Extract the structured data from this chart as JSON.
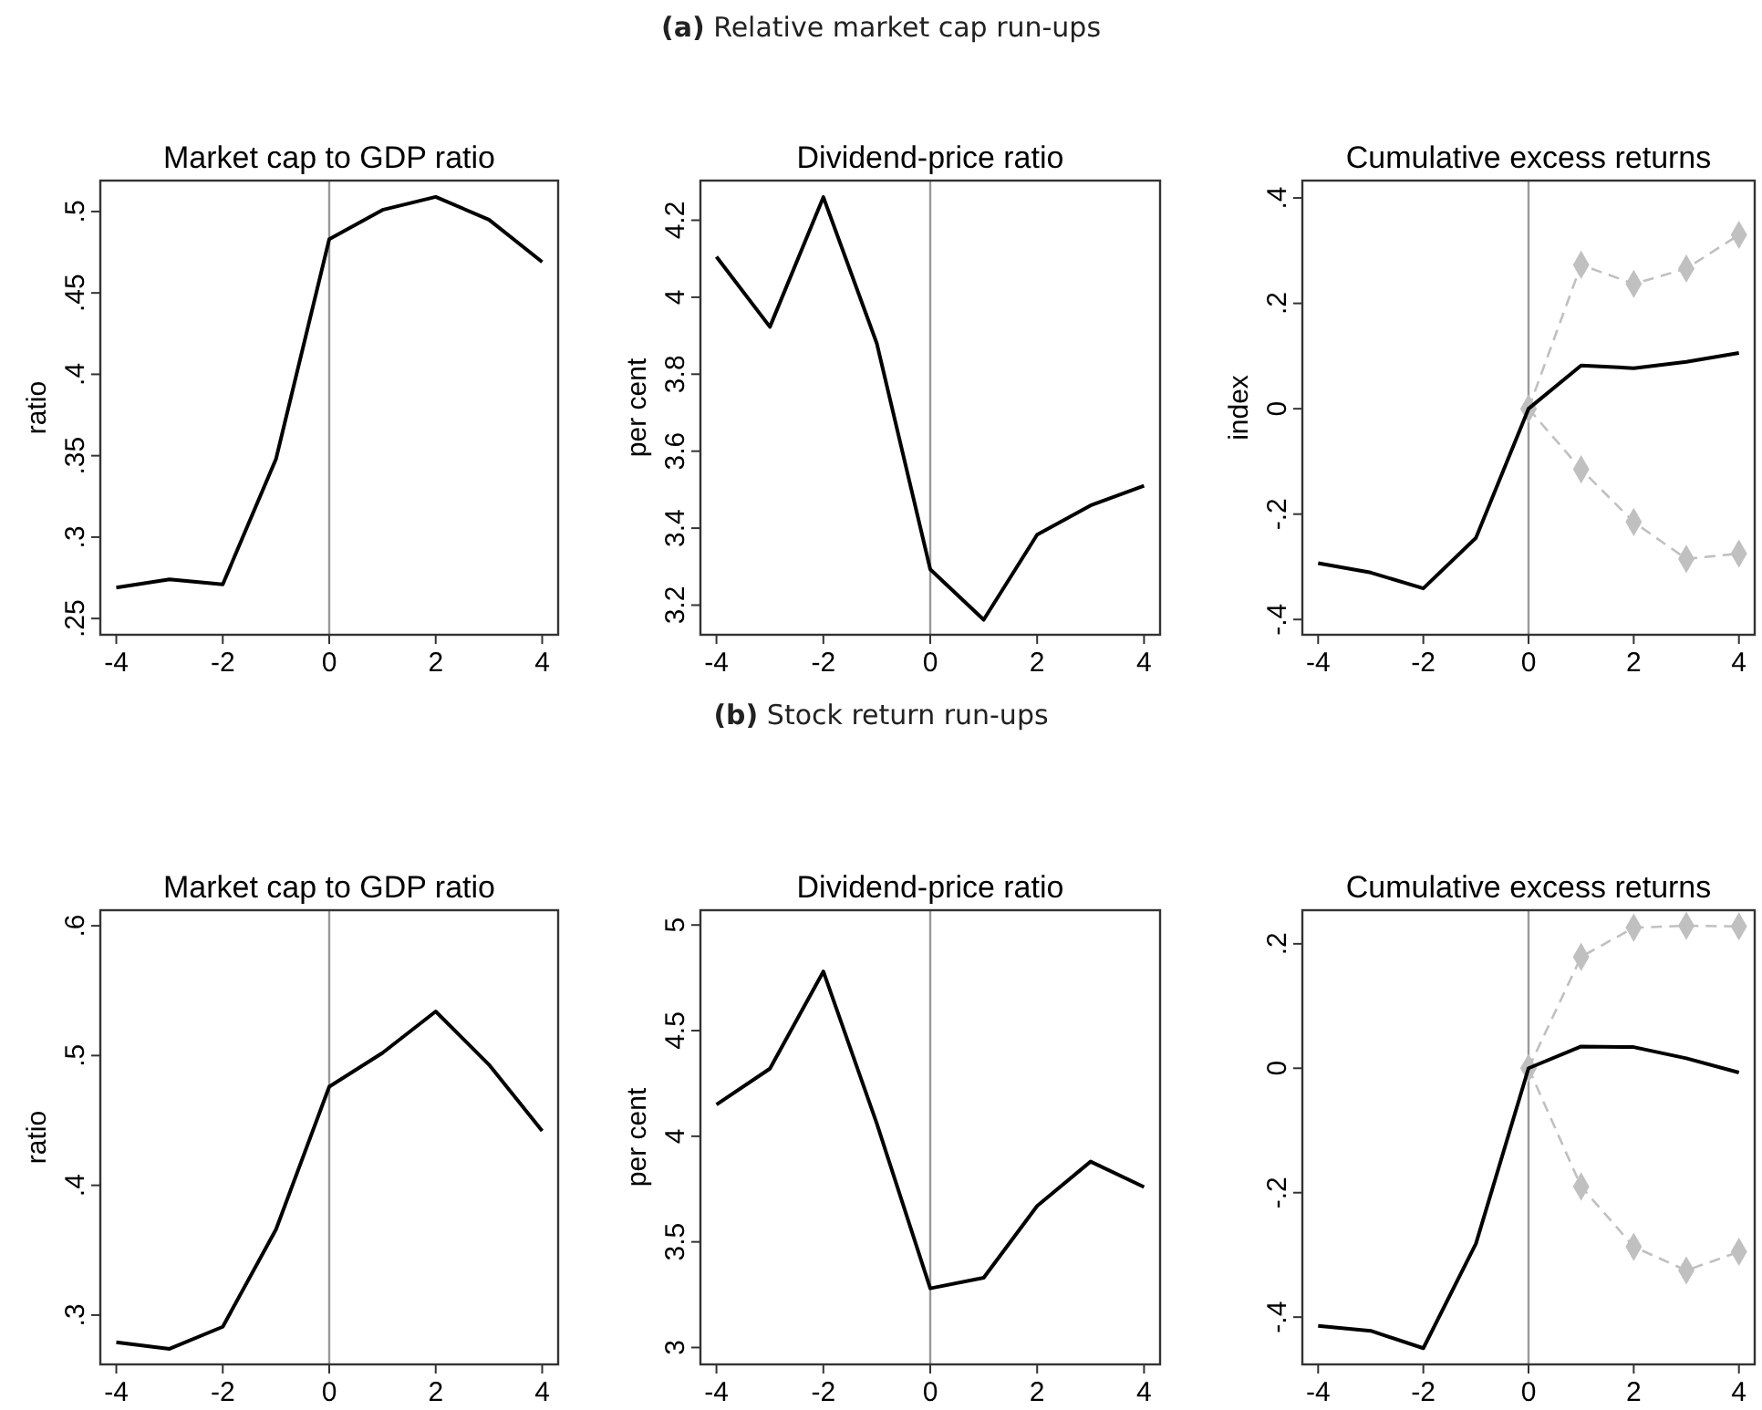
{
  "chart_data": [
    {
      "type": "line",
      "title": "Market cap to GDP ratio",
      "ylabel": "ratio",
      "annotations": [
        "(a) Relative market cap run-ups"
      ],
      "x": [
        -4,
        -3,
        -2,
        -1,
        0,
        1,
        2,
        3,
        4
      ],
      "xlim": [
        -4.3,
        4.3
      ],
      "xticks": [
        -4,
        -2,
        0,
        2,
        4
      ],
      "ylim": [
        0.24,
        0.519
      ],
      "yticks": [
        {
          "value": 0.25,
          "label": ".25"
        },
        {
          "value": 0.3,
          "label": ".3"
        },
        {
          "value": 0.35,
          "label": ".35"
        },
        {
          "value": 0.4,
          "label": ".4"
        },
        {
          "value": 0.45,
          "label": ".45"
        },
        {
          "value": 0.5,
          "label": ".5"
        }
      ],
      "ref_lines": [
        {
          "axis": "x",
          "value": 0,
          "color": "#999999"
        }
      ],
      "series": [
        {
          "color": "#000000",
          "values": [
            0.269,
            0.274,
            0.271,
            0.348,
            0.483,
            0.501,
            0.509,
            0.495,
            0.469
          ]
        }
      ]
    },
    {
      "type": "line",
      "title": "Dividend-price ratio",
      "ylabel": "per cent",
      "x": [
        -4,
        -3,
        -2,
        -1,
        0,
        1,
        2,
        3,
        4
      ],
      "xlim": [
        -4.3,
        4.3
      ],
      "xticks": [
        -4,
        -2,
        0,
        2,
        4
      ],
      "ylim": [
        3.123,
        4.303
      ],
      "yticks": [
        3.2,
        3.4,
        3.6,
        3.8,
        4,
        4.2
      ],
      "ref_lines": [
        {
          "axis": "x",
          "value": 0,
          "color": "#999999"
        }
      ],
      "series": [
        {
          "color": "#000000",
          "values": [
            4.105,
            3.923,
            4.26,
            3.88,
            3.293,
            3.162,
            3.383,
            3.459,
            3.51
          ]
        }
      ]
    },
    {
      "type": "line",
      "title": "Cumulative excess returns",
      "ylabel": "index",
      "x": [
        -4,
        -3,
        -2,
        -1,
        0,
        1,
        2,
        3,
        4
      ],
      "xlim": [
        -4.3,
        4.3
      ],
      "xticks": [
        -4,
        -2,
        0,
        2,
        4
      ],
      "ylim": [
        -0.429,
        0.433
      ],
      "yticks": [
        {
          "value": -0.4,
          "label": "-.4"
        },
        {
          "value": -0.2,
          "label": "-.2"
        },
        0,
        {
          "value": 0.2,
          "label": ".2"
        },
        {
          "value": 0.4,
          "label": ".4"
        }
      ],
      "ref_lines": [
        {
          "axis": "x",
          "value": 0,
          "color": "#999999"
        }
      ],
      "series": [
        {
          "color": "#c0c0c0",
          "marker": "diamond",
          "line_style": "dashed",
          "x": [
            0,
            1,
            2,
            3,
            4
          ],
          "values": [
            0,
            0.273,
            0.237,
            0.266,
            0.33
          ]
        },
        {
          "color": "#c0c0c0",
          "marker": "diamond",
          "line_style": "dashed",
          "x": [
            0,
            1,
            2,
            3,
            4
          ],
          "values": [
            0,
            -0.115,
            -0.215,
            -0.285,
            -0.275
          ]
        },
        {
          "color": "#000000",
          "values": [
            -0.293,
            -0.311,
            -0.341,
            -0.245,
            0,
            0.082,
            0.077,
            0.089,
            0.106
          ]
        }
      ]
    },
    {
      "type": "line",
      "title": "Market cap to GDP ratio",
      "ylabel": "ratio",
      "annotations": [
        "(b) Stock return run-ups"
      ],
      "x": [
        -4,
        -3,
        -2,
        -1,
        0,
        1,
        2,
        3,
        4
      ],
      "xlim": [
        -4.3,
        4.3
      ],
      "xticks": [
        -4,
        -2,
        0,
        2,
        4
      ],
      "ylim": [
        0.262,
        0.612
      ],
      "yticks": [
        {
          "value": 0.3,
          "label": ".3"
        },
        {
          "value": 0.4,
          "label": ".4"
        },
        {
          "value": 0.5,
          "label": ".5"
        },
        {
          "value": 0.6,
          "label": ".6"
        }
      ],
      "ref_lines": [
        {
          "axis": "x",
          "value": 0,
          "color": "#999999"
        }
      ],
      "series": [
        {
          "color": "#000000",
          "values": [
            0.279,
            0.274,
            0.291,
            0.366,
            0.476,
            0.502,
            0.534,
            0.493,
            0.442
          ]
        }
      ]
    },
    {
      "type": "line",
      "title": "Dividend-price ratio",
      "ylabel": "per cent",
      "x": [
        -4,
        -3,
        -2,
        -1,
        0,
        1,
        2,
        3,
        4
      ],
      "xlim": [
        -4.3,
        4.3
      ],
      "xticks": [
        -4,
        -2,
        0,
        2,
        4
      ],
      "ylim": [
        2.92,
        5.07
      ],
      "yticks": [
        3,
        3.5,
        4,
        4.5,
        5
      ],
      "ref_lines": [
        {
          "axis": "x",
          "value": 0,
          "color": "#999999"
        }
      ],
      "series": [
        {
          "color": "#000000",
          "values": [
            4.15,
            4.32,
            4.78,
            4.06,
            3.28,
            3.33,
            3.67,
            3.88,
            3.76
          ]
        }
      ]
    },
    {
      "type": "line",
      "title": "Cumulative excess returns",
      "x": [
        -4,
        -3,
        -2,
        -1,
        0,
        1,
        2,
        3,
        4
      ],
      "xlim": [
        -4.3,
        4.3
      ],
      "xticks": [
        -4,
        -2,
        0,
        2,
        4
      ],
      "ylim": [
        -0.476,
        0.254
      ],
      "yticks": [
        {
          "value": -0.4,
          "label": "-.4"
        },
        {
          "value": -0.2,
          "label": "-.2"
        },
        0,
        {
          "value": 0.2,
          "label": ".2"
        }
      ],
      "ref_lines": [
        {
          "axis": "x",
          "value": 0,
          "color": "#999999"
        }
      ],
      "series": [
        {
          "color": "#c0c0c0",
          "marker": "diamond",
          "line_style": "dashed",
          "x": [
            0,
            1,
            2,
            3,
            4
          ],
          "values": [
            0,
            0.179,
            0.226,
            0.229,
            0.228
          ]
        },
        {
          "color": "#c0c0c0",
          "marker": "diamond",
          "line_style": "dashed",
          "x": [
            0,
            1,
            2,
            3,
            4
          ],
          "values": [
            0,
            -0.19,
            -0.287,
            -0.325,
            -0.295
          ]
        },
        {
          "color": "#000000",
          "values": [
            -0.414,
            -0.422,
            -0.45,
            -0.282,
            0,
            0.035,
            0.034,
            0.016,
            -0.007
          ]
        }
      ]
    }
  ]
}
